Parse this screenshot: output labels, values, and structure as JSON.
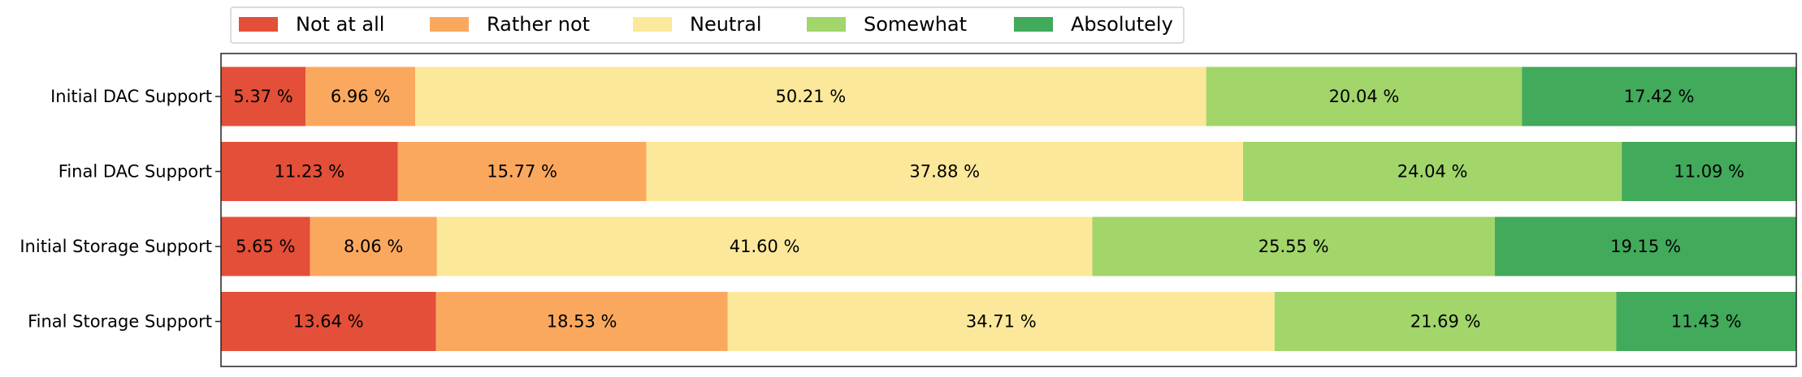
{
  "chart_data": {
    "type": "bar",
    "orientation": "horizontal",
    "stacked": true,
    "title": "",
    "xlabel": "",
    "ylabel": "",
    "xlim": [
      0,
      100
    ],
    "grid": false,
    "legend_position": "top-left",
    "categories": [
      "Initial DAC Support",
      "Final DAC Support",
      "Initial Storage Support",
      "Final Storage Support"
    ],
    "value_label_suffix": " %",
    "series": [
      {
        "name": "Not at all",
        "color": "#e34f38",
        "values": [
          5.37,
          11.23,
          5.65,
          13.64
        ]
      },
      {
        "name": "Rather not",
        "color": "#fba85f",
        "values": [
          6.96,
          15.77,
          8.06,
          18.53
        ]
      },
      {
        "name": "Neutral",
        "color": "#fce89a",
        "values": [
          50.21,
          37.88,
          41.6,
          34.71
        ]
      },
      {
        "name": "Somewhat",
        "color": "#a2d56a",
        "values": [
          20.04,
          24.04,
          25.55,
          21.69
        ]
      },
      {
        "name": "Absolutely",
        "color": "#42aa5b",
        "values": [
          17.42,
          11.09,
          19.15,
          11.43
        ]
      }
    ]
  }
}
